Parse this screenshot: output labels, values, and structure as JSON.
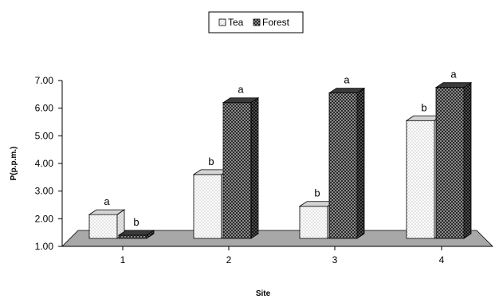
{
  "chart_data": {
    "type": "bar",
    "style": "3d-clustered",
    "title": "",
    "xlabel": "Site",
    "ylabel": "P(p.p.m.)",
    "categories": [
      "1",
      "2",
      "3",
      "4"
    ],
    "ylim": [
      1.0,
      7.0
    ],
    "yticks": [
      "1.00",
      "2.00",
      "3.00",
      "4.00",
      "5.00",
      "6.00",
      "7.00"
    ],
    "legend_position": "top-center",
    "grid": false,
    "series": [
      {
        "name": "Tea",
        "values": [
          2.15,
          3.6,
          2.45,
          5.55
        ],
        "labels": [
          "a",
          "b",
          "b",
          "b"
        ],
        "color": "#ffffff",
        "pattern": "light-dots"
      },
      {
        "name": "Forest",
        "values": [
          1.25,
          6.2,
          6.55,
          6.75
        ],
        "labels": [
          "b",
          "a",
          "a",
          "a"
        ],
        "color": "#222222",
        "pattern": "dark-dots"
      }
    ]
  }
}
